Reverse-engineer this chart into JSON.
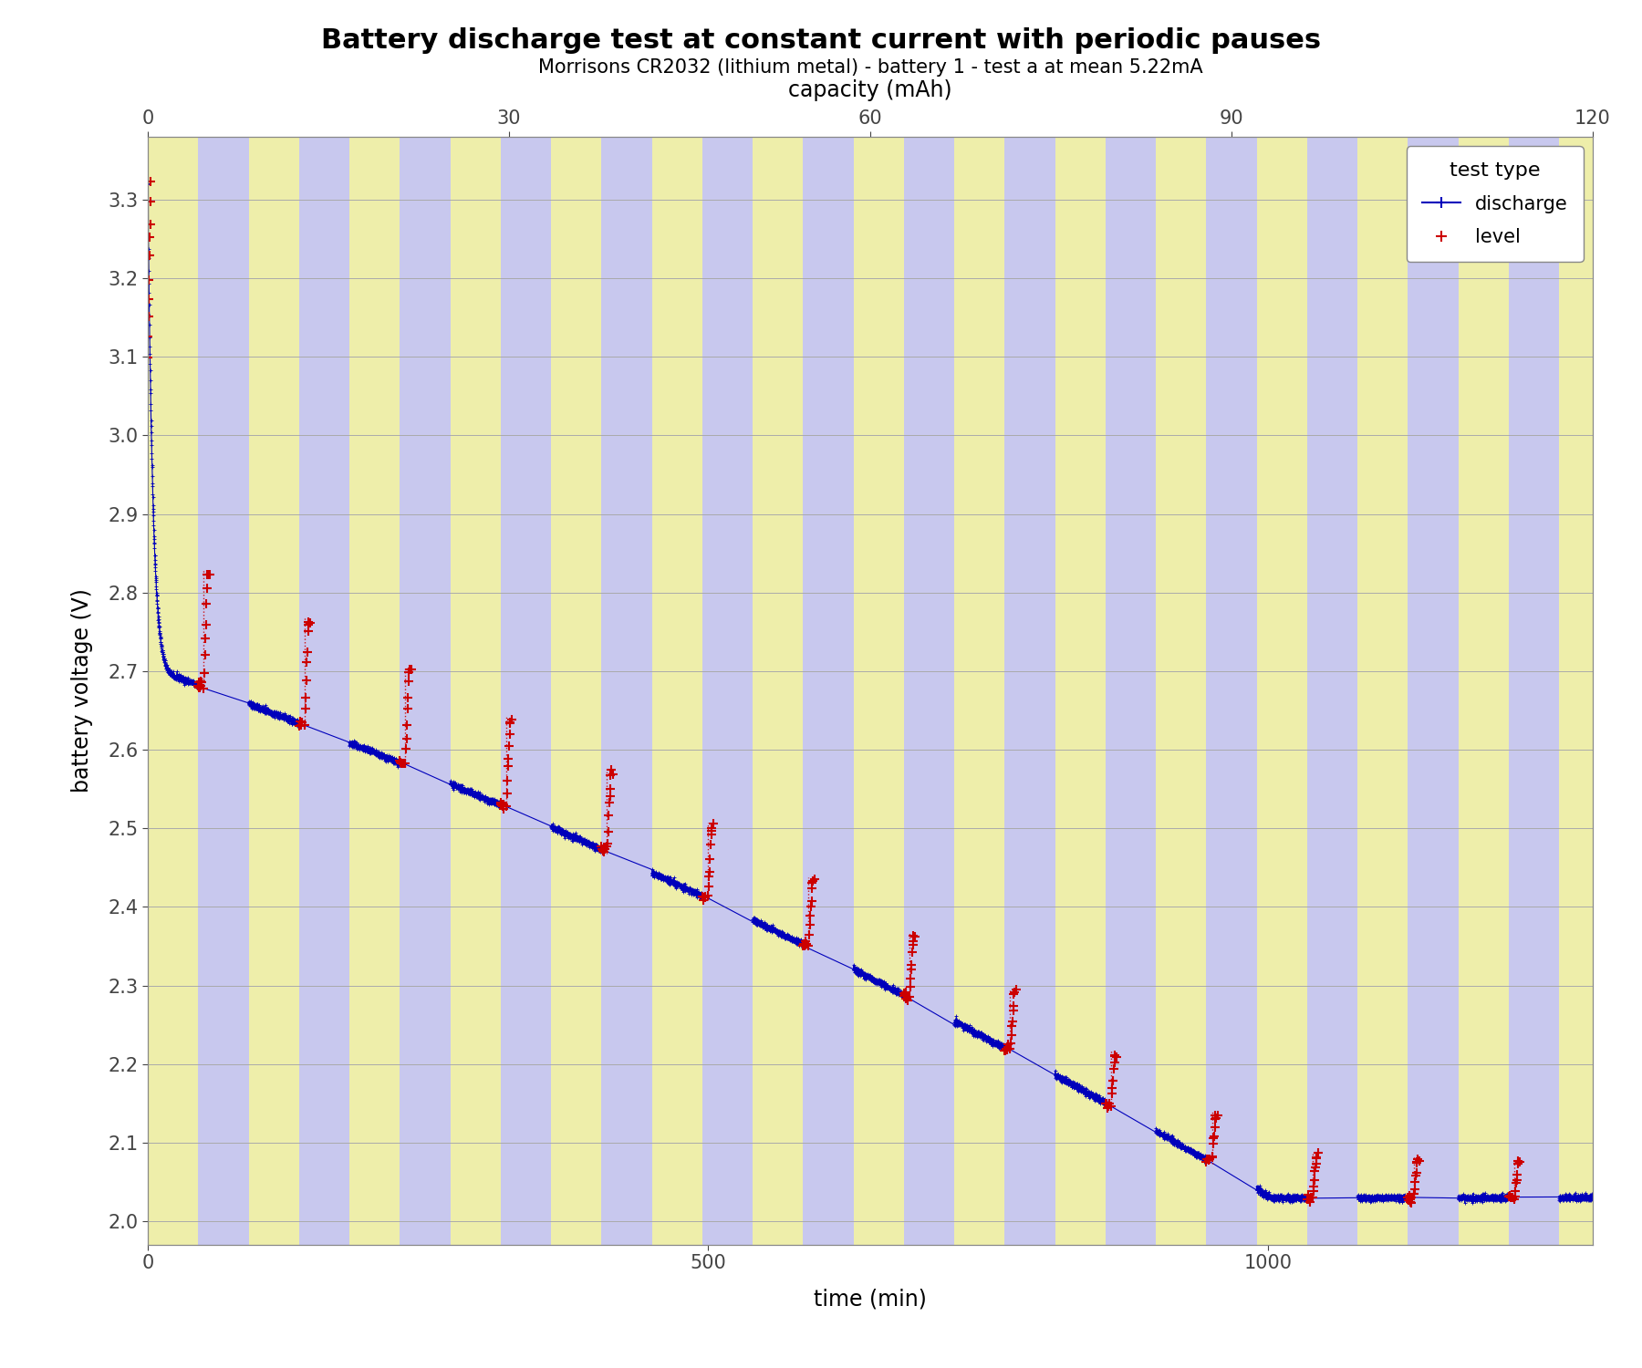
{
  "title": "Battery discharge test at constant current with periodic pauses",
  "subtitle": "Morrisons CR2032 (lithium metal) - battery 1 - test a at mean 5.22mA",
  "xlabel_bottom": "time (min)",
  "xlabel_top": "capacity (mAh)",
  "ylabel": "battery voltage (V)",
  "xlim_time": [
    0,
    1290
  ],
  "xlim_capacity": [
    0,
    120
  ],
  "ylim": [
    1.97,
    3.38
  ],
  "yticks": [
    2.0,
    2.1,
    2.2,
    2.3,
    2.4,
    2.5,
    2.6,
    2.7,
    2.8,
    2.9,
    3.0,
    3.1,
    3.2,
    3.3
  ],
  "xticks_bottom": [
    0,
    500,
    1000
  ],
  "xticks_top": [
    0,
    30,
    60,
    90,
    120
  ],
  "band_color_blue": "#c8c8ee",
  "band_color_yellow": "#eeeeaa",
  "discharge_color": "#0000bb",
  "level_color": "#cc0000",
  "title_fontsize": 22,
  "subtitle_fontsize": 15,
  "label_fontsize": 17,
  "tick_fontsize": 15,
  "legend_fontsize": 15,
  "mean_current_mA": 5.22,
  "band_period_min": 90,
  "discharge_duration_min": 45,
  "pause_duration_min": 45,
  "total_time_min": 1290
}
